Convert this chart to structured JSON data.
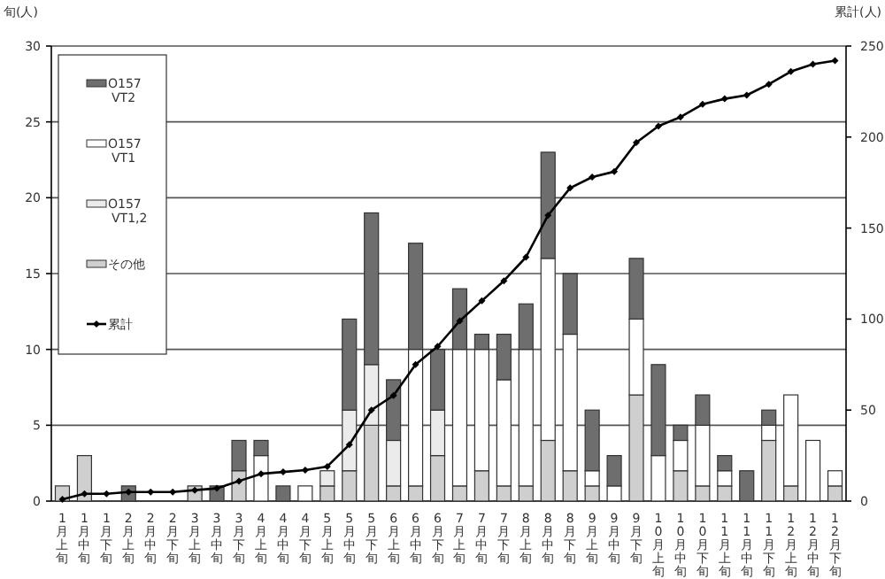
{
  "chart_data": {
    "type": "bar",
    "stacked": true,
    "ylabel": "旬(人)",
    "y2label": "累計(人)",
    "categories": [
      "1月上旬",
      "1月中旬",
      "1月下旬",
      "2月上旬",
      "2月中旬",
      "2月下旬",
      "3月上旬",
      "3月中旬",
      "3月下旬",
      "4月上旬",
      "4月中旬",
      "4月下旬",
      "5月上旬",
      "5月中旬",
      "5月下旬",
      "6月上旬",
      "6月中旬",
      "6月下旬",
      "7月上旬",
      "7月中旬",
      "7月下旬",
      "8月上旬",
      "8月中旬",
      "8月下旬",
      "9月上旬",
      "9月中旬",
      "9月下旬",
      "10月上旬",
      "10月中旬",
      "10月下旬",
      "11月上旬",
      "11月中旬",
      "11月下旬",
      "12月上旬",
      "12月中旬",
      "12月下旬"
    ],
    "ylim": [
      0,
      30
    ],
    "yticks": [
      0,
      5,
      10,
      15,
      20,
      25,
      30
    ],
    "y2lim": [
      0,
      250
    ],
    "y2ticks": [
      0,
      50,
      100,
      150,
      200,
      250
    ],
    "grid": "y",
    "legend": "top left",
    "series": [
      {
        "name": "その他",
        "color": "#cfcfcf",
        "values": [
          1,
          3,
          0,
          0,
          0,
          0,
          1,
          0,
          2,
          0,
          0,
          0,
          1,
          2,
          5,
          1,
          1,
          3,
          1,
          2,
          1,
          1,
          4,
          2,
          1,
          0,
          7,
          0,
          2,
          1,
          1,
          0,
          4,
          1,
          0,
          1
        ]
      },
      {
        "name": "O157 VT1,2",
        "color": "#ebebeb",
        "values": [
          0,
          0,
          0,
          0,
          0,
          0,
          0,
          0,
          0,
          0,
          0,
          0,
          1,
          4,
          4,
          3,
          0,
          3,
          0,
          0,
          0,
          0,
          0,
          0,
          0,
          0,
          0,
          0,
          0,
          0,
          0,
          0,
          0,
          0,
          0,
          0
        ]
      },
      {
        "name": "O157 VT1",
        "color": "#ffffff",
        "values": [
          0,
          0,
          0,
          0,
          0,
          0,
          0,
          0,
          0,
          3,
          0,
          1,
          0,
          0,
          0,
          0,
          9,
          0,
          9,
          8,
          7,
          9,
          12,
          9,
          1,
          1,
          5,
          3,
          2,
          4,
          1,
          0,
          1,
          6,
          4,
          1
        ]
      },
      {
        "name": "O157 VT2",
        "color": "#6e6e6e",
        "values": [
          0,
          0,
          0,
          1,
          0,
          0,
          0,
          1,
          2,
          1,
          1,
          0,
          0,
          6,
          10,
          4,
          7,
          4,
          4,
          1,
          3,
          3,
          7,
          4,
          4,
          2,
          4,
          6,
          1,
          2,
          1,
          2,
          1,
          0,
          0,
          0
        ]
      },
      {
        "name": "累計",
        "type": "line",
        "axis": "y2",
        "color": "#000000",
        "marker": "diamond",
        "values": [
          1,
          4,
          4,
          5,
          5,
          5,
          6,
          7,
          11,
          15,
          16,
          17,
          19,
          31,
          50,
          58,
          75,
          85,
          99,
          110,
          121,
          134,
          157,
          172,
          178,
          181,
          197,
          206,
          211,
          218,
          221,
          223,
          229,
          236,
          240,
          242
        ]
      }
    ]
  }
}
